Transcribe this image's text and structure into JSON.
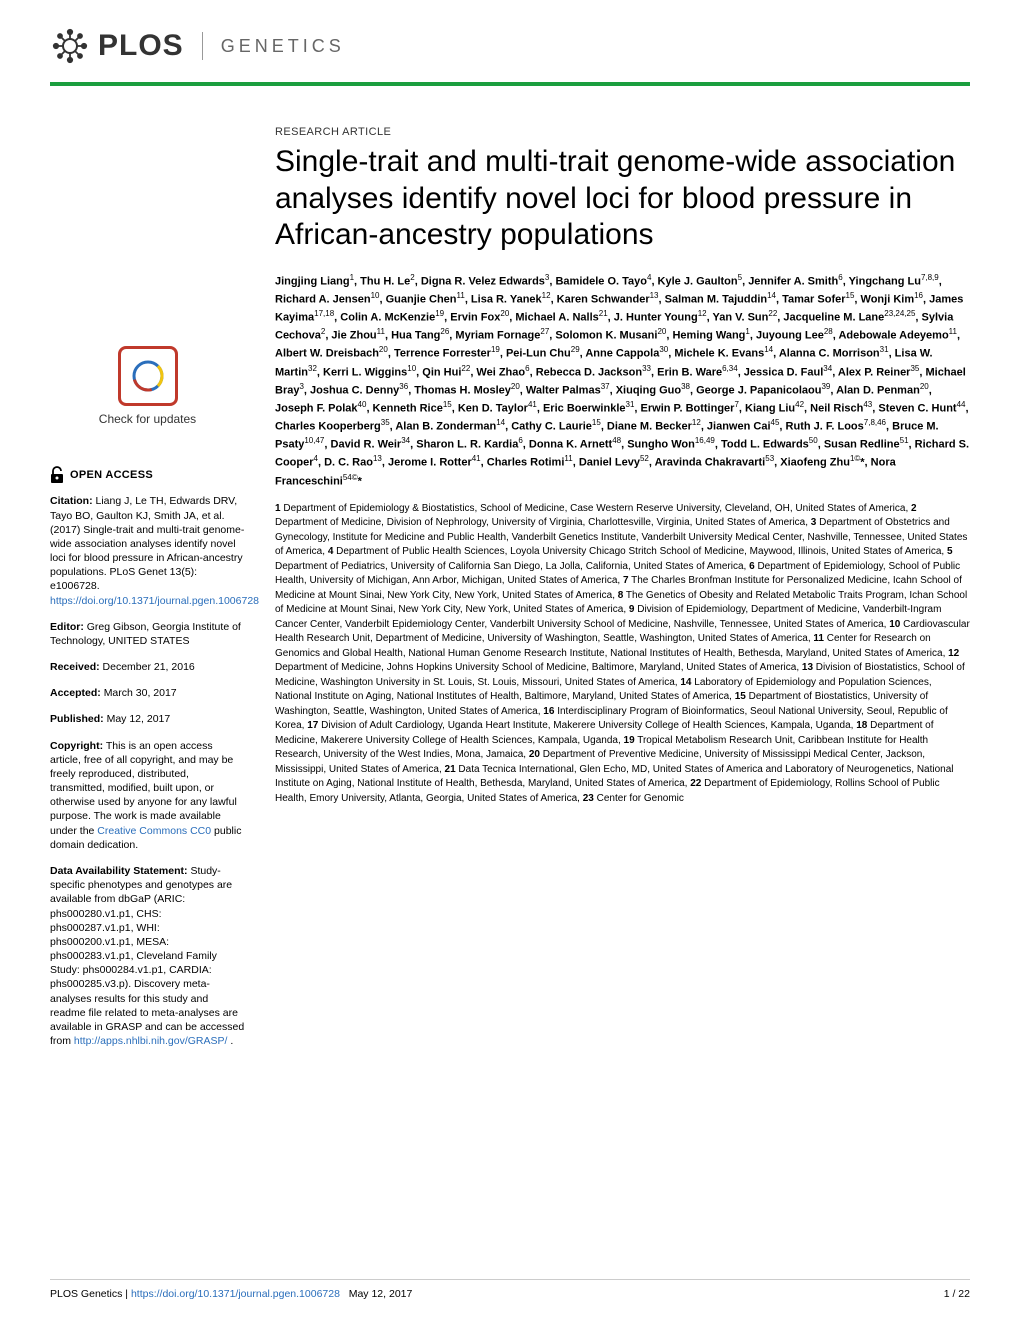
{
  "journal": {
    "publisher": "PLOS",
    "name": "GENETICS",
    "accent_color": "#1b9e3e",
    "link_color": "#2a6ebb"
  },
  "article_type": "RESEARCH ARTICLE",
  "title": "Single-trait and multi-trait genome-wide association analyses identify novel loci for blood pressure in African-ancestry populations",
  "authors_html": "Jingjing Liang<sup>1</sup>, Thu H. Le<sup>2</sup>, Digna R. Velez Edwards<sup>3</sup>, Bamidele O. Tayo<sup>4</sup>, Kyle J. Gaulton<sup>5</sup>, Jennifer A. Smith<sup>6</sup>, Yingchang Lu<sup>7,8,9</sup>, Richard A. Jensen<sup>10</sup>, Guanjie Chen<sup>11</sup>, Lisa R. Yanek<sup>12</sup>, Karen Schwander<sup>13</sup>, Salman M. Tajuddin<sup>14</sup>, Tamar Sofer<sup>15</sup>, Wonji Kim<sup>16</sup>, James Kayima<sup>17,18</sup>, Colin A. McKenzie<sup>19</sup>, Ervin Fox<sup>20</sup>, Michael A. Nalls<sup>21</sup>, J. Hunter Young<sup>12</sup>, Yan V. Sun<sup>22</sup>, Jacqueline M. Lane<sup>23,24,25</sup>, Sylvia Cechova<sup>2</sup>, Jie Zhou<sup>11</sup>, Hua Tang<sup>26</sup>, Myriam Fornage<sup>27</sup>, Solomon K. Musani<sup>20</sup>, Heming Wang<sup>1</sup>, Juyoung Lee<sup>28</sup>, Adebowale Adeyemo<sup>11</sup>, Albert W. Dreisbach<sup>20</sup>, Terrence Forrester<sup>19</sup>, Pei-Lun Chu<sup>29</sup>, Anne Cappola<sup>30</sup>, Michele K. Evans<sup>14</sup>, Alanna C. Morrison<sup>31</sup>, Lisa W. Martin<sup>32</sup>, Kerri L. Wiggins<sup>10</sup>, Qin Hui<sup>22</sup>, Wei Zhao<sup>6</sup>, Rebecca D. Jackson<sup>33</sup>, Erin B. Ware<sup>6,34</sup>, Jessica D. Faul<sup>34</sup>, Alex P. Reiner<sup>35</sup>, Michael Bray<sup>3</sup>, Joshua C. Denny<sup>36</sup>, Thomas H. Mosley<sup>20</sup>, Walter Palmas<sup>37</sup>, Xiuqing Guo<sup>38</sup>, George J. Papanicolaou<sup>39</sup>, Alan D. Penman<sup>20</sup>, Joseph F. Polak<sup>40</sup>, Kenneth Rice<sup>15</sup>, Ken D. Taylor<sup>41</sup>, Eric Boerwinkle<sup>31</sup>, Erwin P. Bottinger<sup>7</sup>, Kiang Liu<sup>42</sup>, Neil Risch<sup>43</sup>, Steven C. Hunt<sup>44</sup>, Charles Kooperberg<sup>35</sup>, Alan B. Zonderman<sup>14</sup>, Cathy C. Laurie<sup>15</sup>, Diane M. Becker<sup>12</sup>, Jianwen Cai<sup>45</sup>, Ruth J. F. Loos<sup>7,8,46</sup>, Bruce M. Psaty<sup>10,47</sup>, David R. Weir<sup>34</sup>, Sharon L. R. Kardia<sup>6</sup>, Donna K. Arnett<sup>48</sup>, Sungho Won<sup>16,49</sup>, Todd L. Edwards<sup>50</sup>, Susan Redline<sup>51</sup>, Richard S. Cooper<sup>4</sup>, D. C. Rao<sup>13</sup>, Jerome I. Rotter<sup>41</sup>, Charles Rotimi<sup>11</sup>, Daniel Levy<sup>52</sup>, Aravinda Chakravarti<sup>53</sup>, Xiaofeng Zhu<sup>1©</sup>*, Nora Franceschini<sup>54©</sup>*",
  "affiliations_html": "<b>1</b> Department of Epidemiology & Biostatistics, School of Medicine, Case Western Reserve University, Cleveland, OH, United States of America, <b>2</b> Department of Medicine, Division of Nephrology, University of Virginia, Charlottesville, Virginia, United States of America, <b>3</b> Department of Obstetrics and Gynecology, Institute for Medicine and Public Health, Vanderbilt Genetics Institute, Vanderbilt University Medical Center, Nashville, Tennessee, United States of America, <b>4</b> Department of Public Health Sciences, Loyola University Chicago Stritch School of Medicine, Maywood, Illinois, United States of America, <b>5</b> Department of Pediatrics, University of California San Diego, La Jolla, California, United States of America, <b>6</b> Department of Epidemiology, School of Public Health, University of Michigan, Ann Arbor, Michigan, United States of America, <b>7</b> The Charles Bronfman Institute for Personalized Medicine, Icahn School of Medicine at Mount Sinai, New York City, New York, United States of America, <b>8</b> The Genetics of Obesity and Related Metabolic Traits Program, Ichan School of Medicine at Mount Sinai, New York City, New York, United States of America, <b>9</b> Division of Epidemiology, Department of Medicine, Vanderbilt-Ingram Cancer Center, Vanderbilt Epidemiology Center, Vanderbilt University School of Medicine, Nashville, Tennessee, United States of America, <b>10</b> Cardiovascular Health Research Unit, Department of Medicine, University of Washington, Seattle, Washington, United States of America, <b>11</b> Center for Research on Genomics and Global Health, National Human Genome Research Institute, National Institutes of Health, Bethesda, Maryland, United States of America, <b>12</b> Department of Medicine, Johns Hopkins University School of Medicine, Baltimore, Maryland, United States of America, <b>13</b> Division of Biostatistics, School of Medicine, Washington University in St. Louis, St. Louis, Missouri, United States of America, <b>14</b> Laboratory of Epidemiology and Population Sciences, National Institute on Aging, National Institutes of Health, Baltimore, Maryland, United States of America, <b>15</b> Department of Biostatistics, University of Washington, Seattle, Washington, United States of America, <b>16</b> Interdisciplinary Program of Bioinformatics, Seoul National University, Seoul, Republic of Korea, <b>17</b> Division of Adult Cardiology, Uganda Heart Institute, Makerere University College of Health Sciences, Kampala, Uganda, <b>18</b> Department of Medicine, Makerere University College of Health Sciences, Kampala, Uganda, <b>19</b> Tropical Metabolism Research Unit, Caribbean Institute for Health Research, University of the West Indies, Mona, Jamaica, <b>20</b> Department of Preventive Medicine, University of Mississippi Medical Center, Jackson, Mississippi, United States of America, <b>21</b> Data Tecnica International, Glen Echo, MD, United States of America and Laboratory of Neurogenetics, National Institute on Aging, National Institute of Health, Bethesda, Maryland, United States of America, <b>22</b> Department of Epidemiology, Rollins School of Public Health, Emory University, Atlanta, Georgia, United States of America, <b>23</b> Center for Genomic",
  "sidebar": {
    "check_updates": "Check for updates",
    "open_access": "OPEN ACCESS",
    "citation_label": "Citation:",
    "citation_text": "Liang J, Le TH, Edwards DRV, Tayo BO, Gaulton KJ, Smith JA, et al. (2017) Single-trait and multi-trait genome-wide association analyses identify novel loci for blood pressure in African-ancestry populations. PLoS Genet 13(5): e1006728. ",
    "citation_link": "https://doi.org/10.1371/journal.pgen.1006728",
    "editor_label": "Editor:",
    "editor_text": "Greg Gibson, Georgia Institute of Technology, UNITED STATES",
    "received_label": "Received:",
    "received_text": "December 21, 2016",
    "accepted_label": "Accepted:",
    "accepted_text": "March 30, 2017",
    "published_label": "Published:",
    "published_text": "May 12, 2017",
    "copyright_label": "Copyright:",
    "copyright_text": "This is an open access article, free of all copyright, and may be freely reproduced, distributed, transmitted, modified, built upon, or otherwise used by anyone for any lawful purpose. The work is made available under the ",
    "copyright_link": "Creative Commons CC0",
    "copyright_text2": " public domain dedication.",
    "data_label": "Data Availability Statement:",
    "data_text": "Study-specific phenotypes and genotypes are available from dbGaP (ARIC: phs000280.v1.p1, CHS: phs000287.v1.p1, WHI: phs000200.v1.p1, MESA: phs000283.v1.p1, Cleveland Family Study: phs000284.v1.p1, CARDIA: phs000285.v3.p). Discovery meta-analyses results for this study and readme file related to meta-analyses are available in GRASP and can be accessed from ",
    "data_link": "http://apps.nhlbi.nih.gov/GRASP/",
    "data_text2": "."
  },
  "footer": {
    "journal": "PLOS Genetics | ",
    "doi": "https://doi.org/10.1371/journal.pgen.1006728",
    "date": "May 12, 2017",
    "page": "1 / 22"
  }
}
